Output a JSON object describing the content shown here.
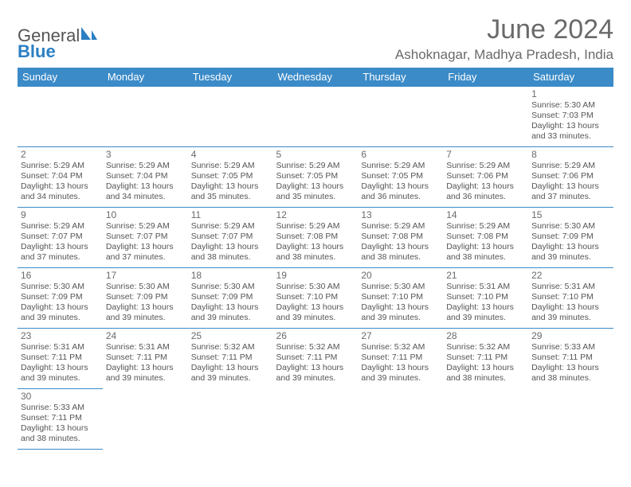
{
  "brand": {
    "name1": "General",
    "name2": "Blue"
  },
  "title": "June 2024",
  "location": "Ashoknagar, Madhya Pradesh, India",
  "colors": {
    "header_bg": "#3b8bc8",
    "header_fg": "#ffffff",
    "border": "#3b8bc8",
    "text": "#555555",
    "title": "#6a6a6a"
  },
  "weekdays": [
    "Sunday",
    "Monday",
    "Tuesday",
    "Wednesday",
    "Thursday",
    "Friday",
    "Saturday"
  ],
  "weeks": [
    [
      null,
      null,
      null,
      null,
      null,
      null,
      {
        "n": "1",
        "sr": "5:30 AM",
        "ss": "7:03 PM",
        "dl": "13 hours and 33 minutes."
      }
    ],
    [
      {
        "n": "2",
        "sr": "5:29 AM",
        "ss": "7:04 PM",
        "dl": "13 hours and 34 minutes."
      },
      {
        "n": "3",
        "sr": "5:29 AM",
        "ss": "7:04 PM",
        "dl": "13 hours and 34 minutes."
      },
      {
        "n": "4",
        "sr": "5:29 AM",
        "ss": "7:05 PM",
        "dl": "13 hours and 35 minutes."
      },
      {
        "n": "5",
        "sr": "5:29 AM",
        "ss": "7:05 PM",
        "dl": "13 hours and 35 minutes."
      },
      {
        "n": "6",
        "sr": "5:29 AM",
        "ss": "7:05 PM",
        "dl": "13 hours and 36 minutes."
      },
      {
        "n": "7",
        "sr": "5:29 AM",
        "ss": "7:06 PM",
        "dl": "13 hours and 36 minutes."
      },
      {
        "n": "8",
        "sr": "5:29 AM",
        "ss": "7:06 PM",
        "dl": "13 hours and 37 minutes."
      }
    ],
    [
      {
        "n": "9",
        "sr": "5:29 AM",
        "ss": "7:07 PM",
        "dl": "13 hours and 37 minutes."
      },
      {
        "n": "10",
        "sr": "5:29 AM",
        "ss": "7:07 PM",
        "dl": "13 hours and 37 minutes."
      },
      {
        "n": "11",
        "sr": "5:29 AM",
        "ss": "7:07 PM",
        "dl": "13 hours and 38 minutes."
      },
      {
        "n": "12",
        "sr": "5:29 AM",
        "ss": "7:08 PM",
        "dl": "13 hours and 38 minutes."
      },
      {
        "n": "13",
        "sr": "5:29 AM",
        "ss": "7:08 PM",
        "dl": "13 hours and 38 minutes."
      },
      {
        "n": "14",
        "sr": "5:29 AM",
        "ss": "7:08 PM",
        "dl": "13 hours and 38 minutes."
      },
      {
        "n": "15",
        "sr": "5:30 AM",
        "ss": "7:09 PM",
        "dl": "13 hours and 39 minutes."
      }
    ],
    [
      {
        "n": "16",
        "sr": "5:30 AM",
        "ss": "7:09 PM",
        "dl": "13 hours and 39 minutes."
      },
      {
        "n": "17",
        "sr": "5:30 AM",
        "ss": "7:09 PM",
        "dl": "13 hours and 39 minutes."
      },
      {
        "n": "18",
        "sr": "5:30 AM",
        "ss": "7:09 PM",
        "dl": "13 hours and 39 minutes."
      },
      {
        "n": "19",
        "sr": "5:30 AM",
        "ss": "7:10 PM",
        "dl": "13 hours and 39 minutes."
      },
      {
        "n": "20",
        "sr": "5:30 AM",
        "ss": "7:10 PM",
        "dl": "13 hours and 39 minutes."
      },
      {
        "n": "21",
        "sr": "5:31 AM",
        "ss": "7:10 PM",
        "dl": "13 hours and 39 minutes."
      },
      {
        "n": "22",
        "sr": "5:31 AM",
        "ss": "7:10 PM",
        "dl": "13 hours and 39 minutes."
      }
    ],
    [
      {
        "n": "23",
        "sr": "5:31 AM",
        "ss": "7:11 PM",
        "dl": "13 hours and 39 minutes."
      },
      {
        "n": "24",
        "sr": "5:31 AM",
        "ss": "7:11 PM",
        "dl": "13 hours and 39 minutes."
      },
      {
        "n": "25",
        "sr": "5:32 AM",
        "ss": "7:11 PM",
        "dl": "13 hours and 39 minutes."
      },
      {
        "n": "26",
        "sr": "5:32 AM",
        "ss": "7:11 PM",
        "dl": "13 hours and 39 minutes."
      },
      {
        "n": "27",
        "sr": "5:32 AM",
        "ss": "7:11 PM",
        "dl": "13 hours and 39 minutes."
      },
      {
        "n": "28",
        "sr": "5:32 AM",
        "ss": "7:11 PM",
        "dl": "13 hours and 38 minutes."
      },
      {
        "n": "29",
        "sr": "5:33 AM",
        "ss": "7:11 PM",
        "dl": "13 hours and 38 minutes."
      }
    ],
    [
      {
        "n": "30",
        "sr": "5:33 AM",
        "ss": "7:11 PM",
        "dl": "13 hours and 38 minutes."
      },
      null,
      null,
      null,
      null,
      null,
      null
    ]
  ],
  "labels": {
    "sunrise": "Sunrise: ",
    "sunset": "Sunset: ",
    "daylight": "Daylight: "
  }
}
